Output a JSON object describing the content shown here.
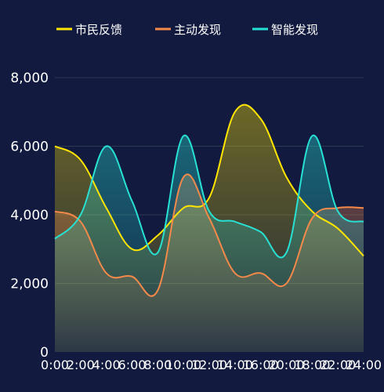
{
  "chart_data": {
    "type": "area",
    "categories": [
      "0:00",
      "2:00",
      "4:00",
      "6:00",
      "8:00",
      "10:00",
      "12:00",
      "14:00",
      "16:00",
      "20:00",
      "18:00",
      "22:00",
      "24:00"
    ],
    "ylim": [
      0,
      8000
    ],
    "y_ticks": [
      "0",
      "2,000",
      "4,000",
      "6,000",
      "8,000"
    ],
    "grid": true,
    "legend_position": "top",
    "series": [
      {
        "name": "市民反馈",
        "color": "#ffe600",
        "values": [
          6000,
          5600,
          4200,
          3000,
          3400,
          4200,
          4500,
          7000,
          6800,
          5100,
          4100,
          3600,
          2800
        ]
      },
      {
        "name": "主动发现",
        "color": "#f5894a",
        "values": [
          4100,
          3800,
          2300,
          2200,
          1800,
          5100,
          3900,
          2300,
          2300,
          2000,
          3900,
          4200,
          4200
        ]
      },
      {
        "name": "智能发现",
        "color": "#27e2d4",
        "values": [
          3300,
          4000,
          6000,
          4400,
          2900,
          6300,
          4100,
          3800,
          3500,
          2900,
          6300,
          4100,
          3800
        ]
      }
    ]
  }
}
